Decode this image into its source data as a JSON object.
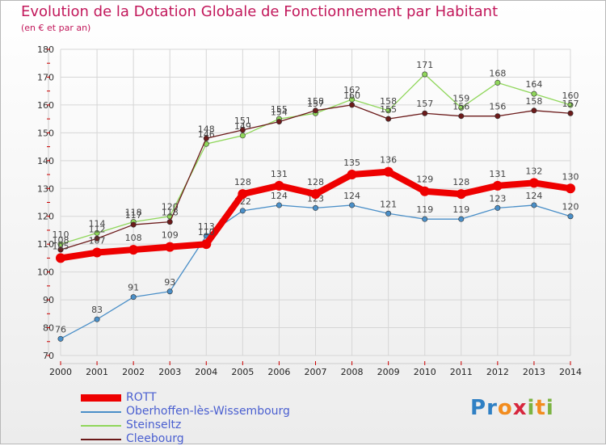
{
  "title": "Evolution de la Dotation Globale de Fonctionnement par Habitant",
  "subtitle": "(en € et par an)",
  "logo": {
    "text": "Proxiti",
    "letters": [
      "P",
      "r",
      "o",
      "x",
      "i",
      "t",
      "i"
    ],
    "letter_colors": [
      "#2f80c4",
      "#2f80c4",
      "#f28c1e",
      "#d7263d",
      "#7cb342",
      "#f28c1e",
      "#7cb342"
    ]
  },
  "chart_data": {
    "type": "line",
    "title": "Evolution de la Dotation Globale de Fonctionnement par Habitant",
    "subtitle": "(en € et par an)",
    "x": [
      "2000",
      "2001",
      "2002",
      "2003",
      "2004",
      "2005",
      "2006",
      "2007",
      "2008",
      "2009",
      "2010",
      "2011",
      "2012",
      "2013",
      "2014"
    ],
    "ylim": [
      70,
      180
    ],
    "yticks": [
      70,
      80,
      90,
      100,
      110,
      120,
      130,
      140,
      150,
      160,
      170,
      180
    ],
    "grid": true,
    "legend_position": "bottom-left",
    "series": [
      {
        "name": "ROTT",
        "color": "#ee0000",
        "emphasis": true,
        "values": [
          105,
          107,
          108,
          109,
          110,
          128,
          131,
          128,
          135,
          136,
          129,
          128,
          131,
          132,
          130
        ]
      },
      {
        "name": "Oberhoffen-lès-Wissembourg",
        "color": "#4a8fc8",
        "emphasis": false,
        "values": [
          76,
          83,
          91,
          93,
          113,
          122,
          124,
          123,
          124,
          121,
          119,
          119,
          123,
          124,
          120
        ]
      },
      {
        "name": "Steinseltz",
        "color": "#8fd65a",
        "emphasis": false,
        "values": [
          110,
          114,
          118,
          120,
          146,
          149,
          155,
          157,
          162,
          158,
          171,
          159,
          168,
          164,
          160
        ]
      },
      {
        "name": "Cleebourg",
        "color": "#6b1a1a",
        "emphasis": false,
        "values": [
          108,
          112,
          117,
          118,
          148,
          151,
          154,
          158,
          160,
          155,
          157,
          156,
          156,
          158,
          157
        ]
      }
    ]
  }
}
